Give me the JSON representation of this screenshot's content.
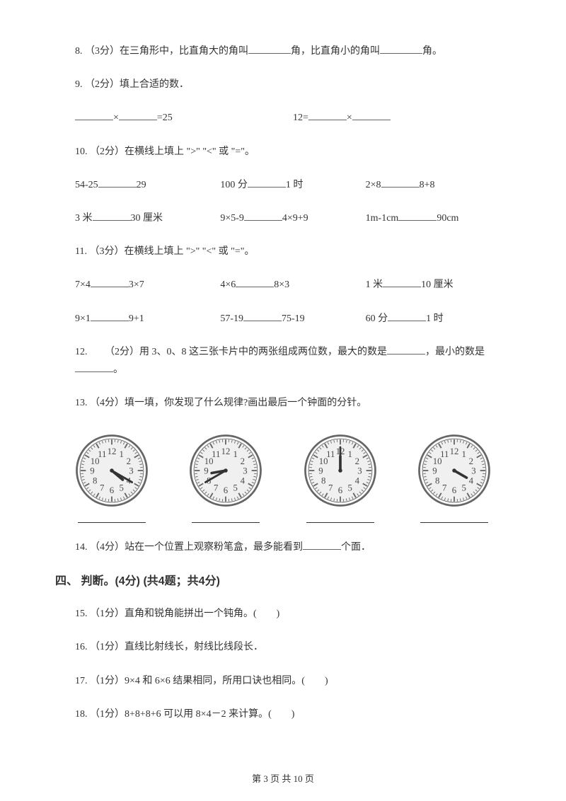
{
  "q8": {
    "full": "8. （3分）在三角形中，比直角大的角叫",
    "mid": "角，比直角小的角叫",
    "end": "角。"
  },
  "q9": {
    "text": "9. （2分）填上合适的数．",
    "eq1_mid": "×",
    "eq1_end": "=25",
    "eq2_pre": "12=",
    "eq2_mid": "×"
  },
  "q10": {
    "text": "10. （2分）在横线上填上 \">\" \"<\" 或 \"=\"。",
    "r1a": "54-25",
    "r1b": "29",
    "r1c": "100 分",
    "r1d": "1 时",
    "r1e": "2×8",
    "r1f": "8+8",
    "r2a": "3 米",
    "r2b": "30 厘米",
    "r2c": "9×5-9",
    "r2d": "4×9+9",
    "r2e": "1m-1cm",
    "r2f": "90cm"
  },
  "q11": {
    "text": "11. （3分）在横线上填上 \">\" \"<\" 或 \"=\"。",
    "r1a": "7×4",
    "r1b": "3×7",
    "r1c": "4×6",
    "r1d": "8×3",
    "r1e": "1 米",
    "r1f": "10 厘米",
    "r2a": "9×1",
    "r2b": "9+1",
    "r2c": "57-19",
    "r2d": "75-19",
    "r2e": "60 分",
    "r2f": "1 时"
  },
  "q12": {
    "pre": "12. 　　（2分）用 3、0、8 这三张卡片中的两张组成两位数，最大的数是",
    "mid": "，最小的数是",
    "end": "。"
  },
  "q13": {
    "text": "13. （4分）填一填，你发现了什么规律?画出最后一个钟面的分针。"
  },
  "q14": {
    "pre": "14. （4分）站在一个位置上观察粉笔盒，最多能看到",
    "end": "个面．"
  },
  "section4": "四、 判断。(4分)  (共4题；共4分)",
  "q15": "15. （1分）直角和锐角能拼出一个钝角。(　　)",
  "q16": "16. （1分）直线比射线长，射线比线段长．",
  "q17": "17. （1分）9×4 和 6×6 结果相同，所用口诀也相同。(　　)",
  "q18": "18. （1分）8+8+8+6 可以用 8×4－2 来计算。(　　)",
  "footer": "第 3 页 共 10 页",
  "clocks": {
    "face_color": "#f0f0f0",
    "stroke_color": "#666666",
    "number_color": "#4a4a4a",
    "hand_color": "#333333",
    "numbers": [
      "12",
      "1",
      "2",
      "3",
      "4",
      "5",
      "6",
      "7",
      "8",
      "9",
      "10",
      "11"
    ],
    "hands": [
      {
        "hour": 4,
        "minute": 20
      },
      {
        "hour": 8,
        "minute": 40
      },
      {
        "hour": 12,
        "minute": 0
      },
      {
        "hour": 4,
        "minute": null
      }
    ]
  }
}
